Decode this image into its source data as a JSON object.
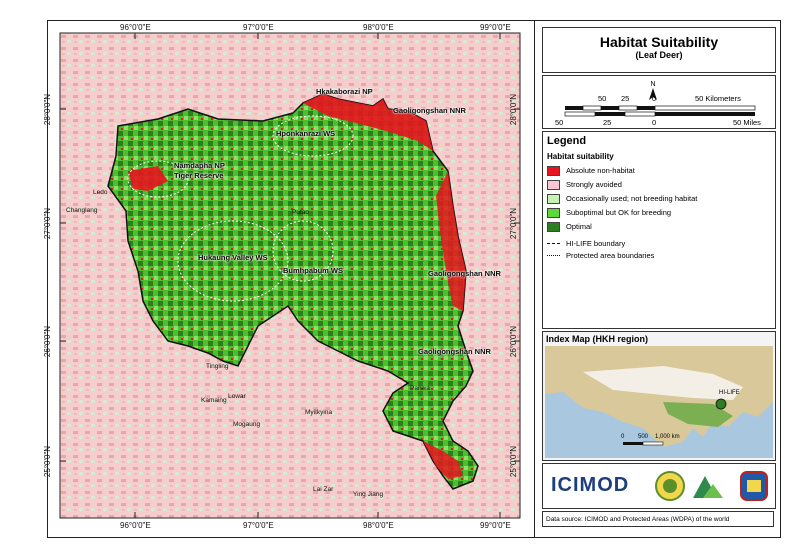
{
  "map": {
    "lon_ticks": [
      "96°0'0\"E",
      "97°0'0\"E",
      "98°0'0\"E",
      "99°0'0\"E"
    ],
    "lat_ticks": [
      "28°0'0\"N",
      "27°0'0\"N",
      "26°0'0\"N",
      "25°0'0\"N"
    ],
    "labels": {
      "hkakaborazi": "Hkakaborazi NP",
      "gaoligongshan1": "Gaoligongshan NNR",
      "hponkanrazi": "Hponkanrazi WS",
      "namdapha": "Namdapha NP",
      "tiger": "Tiger Reserve",
      "hukaung": "Hukaung Valley WS",
      "bumhpabum": "Bumhpabum WS",
      "gaoligongshan2": "Gaoligongshan NNR",
      "gaoligongshan3": "Gaoligongshan NNR",
      "ledo": "Ledo",
      "changlang": "Changlang",
      "tingling": "Tingling",
      "kamaing": "Kamaing",
      "lowar": "Lowar",
      "mogaung": "Mogaung",
      "myitkyina": "Myitkyina",
      "laizar": "Lai Zar",
      "yingjiang": "Ying Jiang",
      "panwa": "Panwa",
      "putao": "Putao"
    }
  },
  "title": "Habitat Suitability",
  "subtitle": "(Leaf Deer)",
  "scale": {
    "north": "N",
    "km_labels": [
      "50",
      "25",
      "0",
      "50 Kilometers"
    ],
    "mi_labels": [
      "50",
      "25",
      "0",
      "50 Miles"
    ]
  },
  "legend": {
    "title": "Legend",
    "subtitle": "Habitat suitability",
    "items": [
      {
        "label": "Absolute non-habitat",
        "color": "#e8141f"
      },
      {
        "label": "Strongly avoided",
        "color": "#f7c7d3"
      },
      {
        "label": "Occasionally used; not breeding habitat",
        "color": "#c6f0b4"
      },
      {
        "label": "Suboptimal but OK for breeding",
        "color": "#5fd63c"
      },
      {
        "label": "Optimal",
        "color": "#2e7d1f"
      }
    ],
    "lines": [
      {
        "label": "HI-LIFE boundary"
      },
      {
        "label": "Protected area boundaries"
      }
    ]
  },
  "index_map": {
    "title": "Index Map (HKH region)",
    "label": "HI-LIFE",
    "scale_labels": [
      "0",
      "500",
      "1,000 km"
    ]
  },
  "logos": {
    "icimod": "ICIMOD"
  },
  "source": "Data source: ICIMOD and Protected Areas (WDPA) of the world"
}
